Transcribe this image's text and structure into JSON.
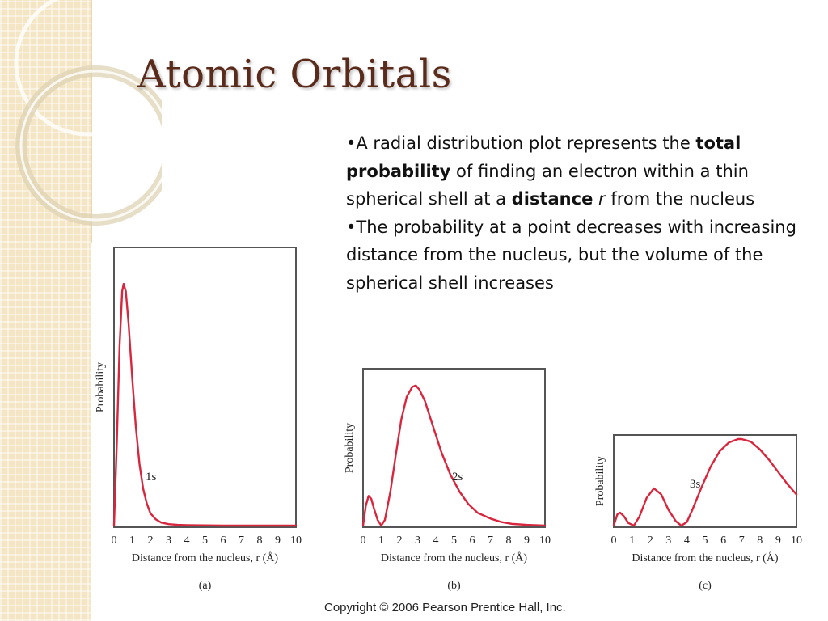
{
  "slide": {
    "title": "Atomic Orbitals",
    "bullets": [
      {
        "parts": [
          {
            "text": "•A radial distribution plot represents the ",
            "style": "normal"
          },
          {
            "text": "total probability",
            "style": "bold"
          },
          {
            "text": " of finding an electron within a thin spherical shell at a ",
            "style": "normal"
          },
          {
            "text": "distance",
            "style": "bold"
          },
          {
            "text": " ",
            "style": "normal"
          },
          {
            "text": "r",
            "style": "italic"
          },
          {
            "text": " from the nucleus",
            "style": "normal"
          }
        ]
      },
      {
        "parts": [
          {
            "text": "•The probability at a point decreases with increasing distance from the nucleus, but the volume of the spherical shell increases",
            "style": "normal"
          }
        ]
      }
    ],
    "copyright": "Copyright © 2006 Pearson Prentice Hall, Inc.",
    "colors": {
      "title": "#5a2a1a",
      "curve": "#d7263d",
      "frame": "#555555",
      "band": "#f4e6c4"
    }
  },
  "chart_data": [
    {
      "type": "line",
      "panel_label": "(a)",
      "curve_label": "1s",
      "xlabel": "Distance from the nucleus, r (Å)",
      "ylabel": "Probability",
      "xlim": [
        0,
        10
      ],
      "x_ticks": [
        "0",
        "1",
        "2",
        "3",
        "4",
        "5",
        "6",
        "7",
        "8",
        "9",
        "10"
      ],
      "ylim": [
        0,
        1
      ],
      "series": [
        {
          "x": [
            0,
            0.15,
            0.3,
            0.45,
            0.53,
            0.65,
            0.8,
            1.0,
            1.2,
            1.4,
            1.6,
            1.8,
            2.0,
            2.3,
            2.6,
            3.0,
            3.5,
            4.0,
            5.0,
            6.0,
            8.0,
            10.0
          ],
          "y": [
            0,
            0.33,
            0.72,
            0.95,
            0.98,
            0.95,
            0.82,
            0.6,
            0.4,
            0.25,
            0.15,
            0.09,
            0.05,
            0.025,
            0.012,
            0.006,
            0.003,
            0.002,
            0.001,
            0,
            0,
            0
          ]
        }
      ]
    },
    {
      "type": "line",
      "panel_label": "(b)",
      "curve_label": "2s",
      "xlabel": "Distance from the nucleus, r (Å)",
      "ylabel": "Probability",
      "xlim": [
        0,
        10
      ],
      "x_ticks": [
        "0",
        "1",
        "2",
        "3",
        "4",
        "5",
        "6",
        "7",
        "8",
        "9",
        "10"
      ],
      "ylim": [
        0,
        1
      ],
      "series": [
        {
          "x": [
            0,
            0.15,
            0.3,
            0.45,
            0.6,
            0.8,
            1.0,
            1.2,
            1.5,
            1.8,
            2.1,
            2.4,
            2.7,
            2.9,
            3.1,
            3.4,
            3.8,
            4.3,
            4.8,
            5.3,
            5.8,
            6.3,
            7.0,
            7.6,
            8.2,
            9.0,
            10.0
          ],
          "y": [
            0,
            0.14,
            0.21,
            0.19,
            0.12,
            0.04,
            0,
            0.04,
            0.24,
            0.5,
            0.75,
            0.91,
            0.98,
            0.99,
            0.96,
            0.88,
            0.72,
            0.52,
            0.36,
            0.24,
            0.15,
            0.09,
            0.05,
            0.025,
            0.012,
            0.005,
            0
          ]
        }
      ]
    },
    {
      "type": "line",
      "panel_label": "(c)",
      "curve_label": "3s",
      "xlabel": "Distance from the nucleus, r (Å)",
      "ylabel": "Probability",
      "xlim": [
        0,
        10
      ],
      "x_ticks": [
        "0",
        "1",
        "2",
        "3",
        "4",
        "5",
        "6",
        "7",
        "8",
        "9",
        "10"
      ],
      "ylim": [
        0,
        1
      ],
      "series": [
        {
          "x": [
            0,
            0.2,
            0.35,
            0.55,
            0.8,
            1.1,
            1.4,
            1.8,
            2.2,
            2.6,
            3.0,
            3.4,
            3.7,
            4.0,
            4.3,
            4.8,
            5.3,
            5.8,
            6.3,
            6.8,
            7.0,
            7.5,
            8.0,
            8.5,
            9.0,
            9.5,
            10.0
          ],
          "y": [
            0,
            0.13,
            0.15,
            0.11,
            0.03,
            0,
            0.1,
            0.32,
            0.43,
            0.36,
            0.18,
            0.05,
            0,
            0.04,
            0.18,
            0.44,
            0.68,
            0.86,
            0.96,
            1.0,
            1.0,
            0.97,
            0.88,
            0.76,
            0.62,
            0.48,
            0.36
          ]
        }
      ]
    }
  ]
}
